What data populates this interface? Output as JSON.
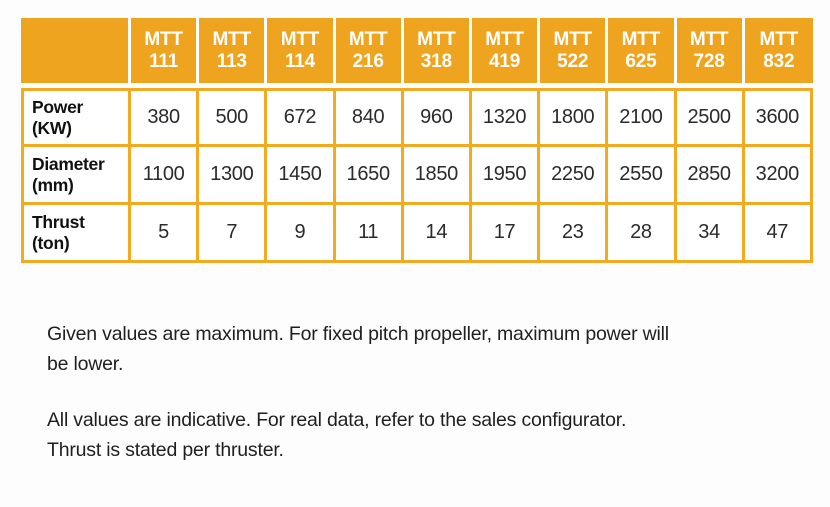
{
  "colors": {
    "accent_orange": "#EEA41F",
    "table_border_orange": "#F3A920",
    "header_text": "#FFFFFF",
    "body_text": "#1F1F1F"
  },
  "table": {
    "corner_label": "",
    "columns": [
      {
        "series": "MTT",
        "model": "111"
      },
      {
        "series": "MTT",
        "model": "113"
      },
      {
        "series": "MTT",
        "model": "114"
      },
      {
        "series": "MTT",
        "model": "216"
      },
      {
        "series": "MTT",
        "model": "318"
      },
      {
        "series": "MTT",
        "model": "419"
      },
      {
        "series": "MTT",
        "model": "522"
      },
      {
        "series": "MTT",
        "model": "625"
      },
      {
        "series": "MTT",
        "model": "728"
      },
      {
        "series": "MTT",
        "model": "832"
      }
    ],
    "rows": [
      {
        "label": "Power",
        "unit": "(KW)",
        "values": [
          380,
          500,
          672,
          840,
          960,
          1320,
          1800,
          2100,
          2500,
          3600
        ]
      },
      {
        "label": "Diameter",
        "unit": "(mm)",
        "values": [
          1100,
          1300,
          1450,
          1650,
          1850,
          1950,
          2250,
          2550,
          2850,
          3200
        ]
      },
      {
        "label": "Thrust",
        "unit": "(ton)",
        "values": [
          5,
          7,
          9,
          11,
          14,
          17,
          23,
          28,
          34,
          47
        ]
      }
    ]
  },
  "notes": {
    "note1": {
      "line1": "Given values are maximum. For fixed pitch propeller, maximum power will",
      "line2": "be lower."
    },
    "note2": {
      "line1": "All values are indicative. For real data, refer to the sales configurator.",
      "line2": "Thrust is stated per thruster."
    }
  }
}
